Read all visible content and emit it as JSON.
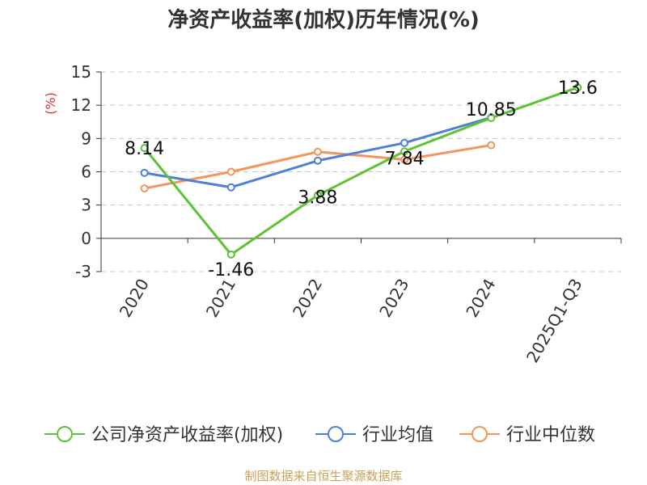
{
  "chart_data": {
    "type": "line",
    "title": "净资产收益率(加权)历年情况(%)",
    "ylabel": "(%)",
    "xlabel": "",
    "categories": [
      "2020",
      "2021",
      "2022",
      "2023",
      "2024",
      "2025Q1-Q3"
    ],
    "ylim": [
      -3,
      15
    ],
    "yticks": [
      -3,
      0,
      3,
      6,
      9,
      12,
      15
    ],
    "grid": true,
    "legend_position": "bottom",
    "series": [
      {
        "name": "公司净资产收益率(加权)",
        "color": "#5cc334",
        "values": [
          8.14,
          -1.46,
          3.88,
          7.84,
          10.85,
          13.6
        ],
        "data_labels": [
          "8.14",
          "-1.46",
          "3.88",
          "7.84",
          "10.85",
          "13.6"
        ]
      },
      {
        "name": "行业均值",
        "color": "#4f7fd6",
        "values": [
          5.9,
          4.6,
          7.0,
          8.6,
          10.9,
          null
        ]
      },
      {
        "name": "行业中位数",
        "color": "#f39559",
        "values": [
          4.5,
          6.0,
          7.8,
          7.1,
          8.4,
          null
        ]
      }
    ]
  },
  "source_text": "制图数据来自恒生聚源数据库"
}
